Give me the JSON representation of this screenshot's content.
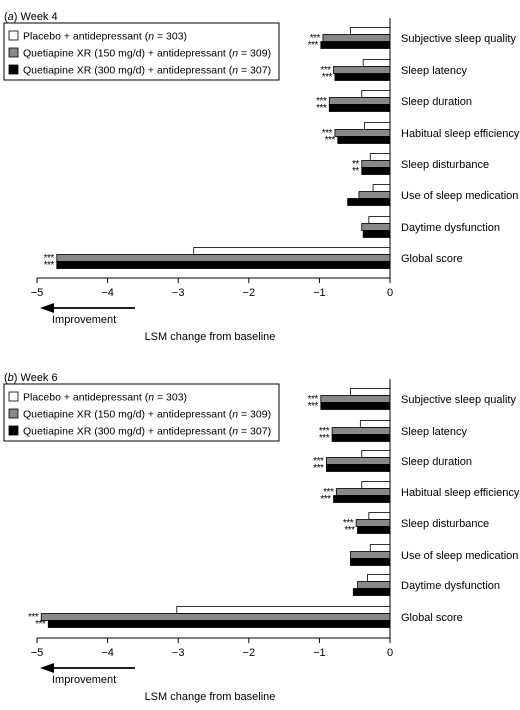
{
  "chart_data": [
    {
      "type": "bar",
      "title": "Week 4",
      "panel_letter": "a",
      "xlabel": "LSM change from baseline",
      "arrow_label": "Improvement",
      "xlim": [
        -5,
        0
      ],
      "xticks": [
        "−5",
        "−4",
        "−3",
        "−2",
        "−1",
        "0"
      ],
      "categories": [
        "Subjective sleep quality",
        "Sleep latency",
        "Sleep duration",
        "Habitual sleep efficiency",
        "Sleep disturbance",
        "Use of sleep medication",
        "Daytime dysfunction",
        "Global score"
      ],
      "series": [
        {
          "name": "Placebo + antidepressant (n = 303)",
          "name_parts": [
            "Placebo + antidepressant (",
            "n",
            " = 303)"
          ],
          "color": "#ffffff",
          "values": [
            -0.56,
            -0.38,
            -0.4,
            -0.36,
            -0.28,
            -0.24,
            -0.3,
            -2.78
          ]
        },
        {
          "name": "Quetiapine XR (150 mg/d) + antidepressant (n = 309)",
          "name_parts": [
            "Quetiapine XR (150 mg/d) + antidepressant (",
            "n",
            " = 309)"
          ],
          "color": "#888888",
          "values": [
            -0.95,
            -0.8,
            -0.86,
            -0.78,
            -0.4,
            -0.44,
            -0.4,
            -4.72
          ]
        },
        {
          "name": "Quetiapine XR (300 mg/d) + antidepressant (n = 307)",
          "name_parts": [
            "Quetiapine XR (300 mg/d) + antidepressant (",
            "n",
            " = 307)"
          ],
          "color": "#000000",
          "values": [
            -0.98,
            -0.78,
            -0.86,
            -0.74,
            -0.4,
            -0.6,
            -0.38,
            -4.72
          ]
        }
      ],
      "significance": [
        [
          "***",
          "***"
        ],
        [
          "***",
          "***"
        ],
        [
          "***",
          "***"
        ],
        [
          "***",
          "***"
        ],
        [
          "**",
          "**"
        ],
        [
          "",
          ""
        ],
        [
          "",
          ""
        ],
        [
          "***",
          "***"
        ]
      ],
      "legend_position": "top-left"
    },
    {
      "type": "bar",
      "title": "Week 6",
      "panel_letter": "b",
      "xlabel": "LSM change from baseline",
      "arrow_label": "Improvement",
      "xlim": [
        -5,
        0
      ],
      "xticks": [
        "−5",
        "−4",
        "−3",
        "−2",
        "−1",
        "0"
      ],
      "categories": [
        "Subjective sleep quality",
        "Sleep latency",
        "Sleep duration",
        "Habitual sleep efficiency",
        "Sleep disturbance",
        "Use of sleep medication",
        "Daytime dysfunction",
        "Global score"
      ],
      "series": [
        {
          "name": "Placebo + antidepressant (n = 303)",
          "name_parts": [
            "Placebo + antidepressant (",
            "n",
            " = 303)"
          ],
          "color": "#ffffff",
          "values": [
            -0.56,
            -0.42,
            -0.4,
            -0.4,
            -0.3,
            -0.28,
            -0.32,
            -3.02
          ]
        },
        {
          "name": "Quetiapine XR (150 mg/d) + antidepressant (n = 309)",
          "name_parts": [
            "Quetiapine XR (150 mg/d) + antidepressant (",
            "n",
            " = 309)"
          ],
          "color": "#888888",
          "values": [
            -0.98,
            -0.82,
            -0.9,
            -0.76,
            -0.48,
            -0.56,
            -0.46,
            -4.94
          ]
        },
        {
          "name": "Quetiapine XR (300 mg/d) + antidepressant (n = 307)",
          "name_parts": [
            "Quetiapine XR (300 mg/d) + antidepressant (",
            "n",
            " = 307)"
          ],
          "color": "#000000",
          "values": [
            -0.98,
            -0.82,
            -0.9,
            -0.8,
            -0.46,
            -0.56,
            -0.52,
            -4.84
          ]
        }
      ],
      "significance": [
        [
          "***",
          "***"
        ],
        [
          "***",
          "***"
        ],
        [
          "***",
          "***"
        ],
        [
          "***",
          "***"
        ],
        [
          "***",
          "***"
        ],
        [
          "",
          ""
        ],
        [
          "",
          ""
        ],
        [
          "***",
          "***"
        ]
      ],
      "legend_position": "top-left"
    }
  ]
}
